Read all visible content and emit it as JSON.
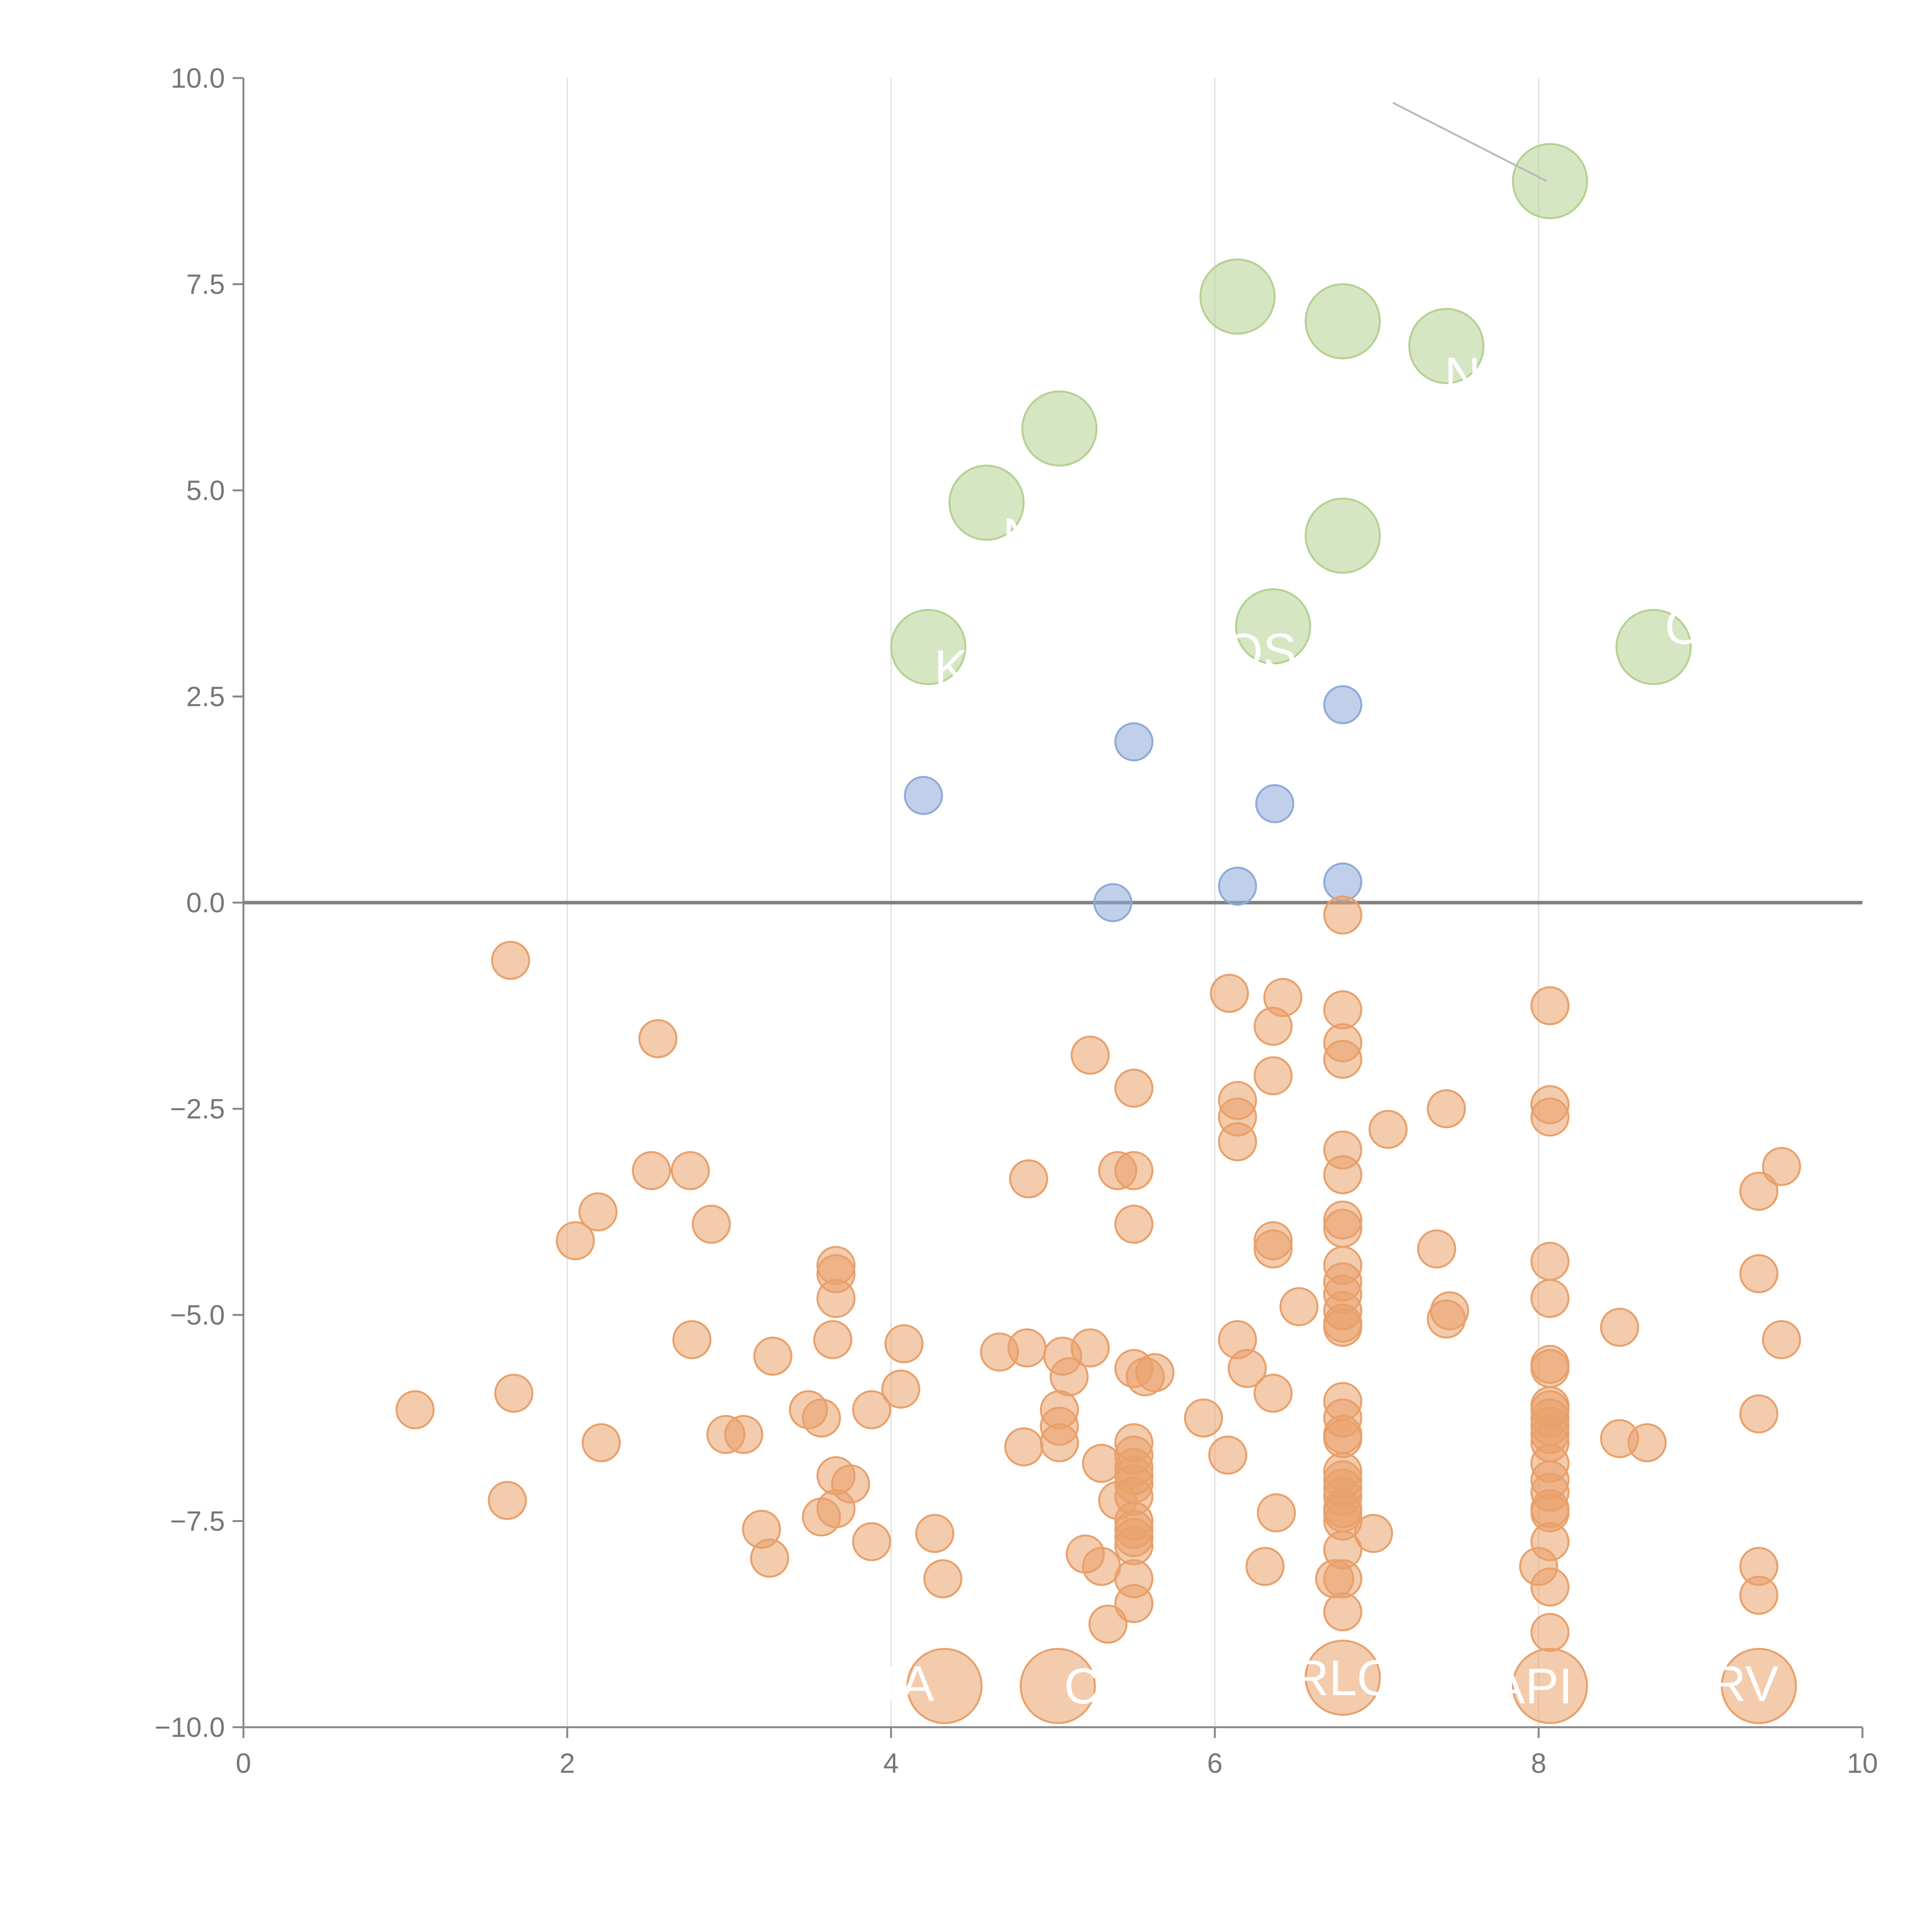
{
  "chart_data": {
    "type": "scatter",
    "title": "",
    "xlabel": "",
    "ylabel": "",
    "xlim": [
      0,
      10
    ],
    "ylim": [
      -10,
      10
    ],
    "x_ticks": [
      "0",
      "2",
      "4",
      "6",
      "8",
      "10"
    ],
    "x_tick_values": [
      0,
      2,
      4,
      6,
      8,
      10
    ],
    "y_ticks": [
      "10.0",
      "7.5",
      "5.0",
      "2.5",
      "0.0",
      "−2.5",
      "−5.0",
      "−7.5",
      "−10.0"
    ],
    "y_tick_values": [
      10,
      7.5,
      5,
      2.5,
      0,
      -2.5,
      -5,
      -7.5,
      -10
    ],
    "vertical_gridlines_at": [
      2,
      4,
      6,
      8
    ],
    "zero_line": true,
    "legend": "none",
    "colors": {
      "green": "#b5d192",
      "blue": "#8eaad8",
      "orange": "#e9a06a",
      "white_label": "#ffffff"
    },
    "series": [
      {
        "color_key": "green",
        "marker_size": "large",
        "points": [
          {
            "x": 8.07,
            "y": 8.75
          },
          {
            "x": 6.14,
            "y": 7.35
          },
          {
            "x": 6.79,
            "y": 7.05
          },
          {
            "x": 7.43,
            "y": 6.75
          },
          {
            "x": 5.04,
            "y": 5.75
          },
          {
            "x": 4.59,
            "y": 4.85
          },
          {
            "x": 6.79,
            "y": 4.45
          },
          {
            "x": 6.36,
            "y": 3.35
          },
          {
            "x": 4.23,
            "y": 3.1
          },
          {
            "x": 8.71,
            "y": 3.1
          }
        ]
      },
      {
        "color_key": "blue",
        "marker_size": "small",
        "points": [
          {
            "x": 6.79,
            "y": 2.4
          },
          {
            "x": 5.5,
            "y": 1.95
          },
          {
            "x": 4.2,
            "y": 1.3
          },
          {
            "x": 6.37,
            "y": 1.2
          },
          {
            "x": 6.79,
            "y": 0.25
          },
          {
            "x": 6.14,
            "y": 0.2
          },
          {
            "x": 5.37,
            "y": 0.0
          }
        ]
      },
      {
        "color_key": "orange",
        "marker_size": "small",
        "points": [
          {
            "x": 6.79,
            "y": -0.15
          },
          {
            "x": 1.65,
            "y": -0.7
          },
          {
            "x": 6.09,
            "y": -1.1
          },
          {
            "x": 6.42,
            "y": -1.15
          },
          {
            "x": 8.07,
            "y": -1.25
          },
          {
            "x": 6.79,
            "y": -1.3
          },
          {
            "x": 6.36,
            "y": -1.5
          },
          {
            "x": 2.56,
            "y": -1.65
          },
          {
            "x": 6.79,
            "y": -1.7
          },
          {
            "x": 5.23,
            "y": -1.85
          },
          {
            "x": 6.79,
            "y": -1.9
          },
          {
            "x": 6.36,
            "y": -2.1
          },
          {
            "x": 5.5,
            "y": -2.25
          },
          {
            "x": 6.14,
            "y": -2.4
          },
          {
            "x": 8.07,
            "y": -2.45
          },
          {
            "x": 7.43,
            "y": -2.5
          },
          {
            "x": 6.14,
            "y": -2.6
          },
          {
            "x": 8.07,
            "y": -2.6
          },
          {
            "x": 7.07,
            "y": -2.75
          },
          {
            "x": 6.14,
            "y": -2.9
          },
          {
            "x": 6.79,
            "y": -3.0
          },
          {
            "x": 2.52,
            "y": -3.25
          },
          {
            "x": 2.76,
            "y": -3.25
          },
          {
            "x": 5.4,
            "y": -3.25
          },
          {
            "x": 5.5,
            "y": -3.25
          },
          {
            "x": 6.79,
            "y": -3.3
          },
          {
            "x": 9.5,
            "y": -3.2
          },
          {
            "x": 4.85,
            "y": -3.35
          },
          {
            "x": 9.36,
            "y": -3.5
          },
          {
            "x": 2.19,
            "y": -3.75
          },
          {
            "x": 6.79,
            "y": -3.85
          },
          {
            "x": 2.89,
            "y": -3.9
          },
          {
            "x": 5.5,
            "y": -3.9
          },
          {
            "x": 6.79,
            "y": -3.95
          },
          {
            "x": 2.05,
            "y": -4.1
          },
          {
            "x": 6.36,
            "y": -4.1
          },
          {
            "x": 7.37,
            "y": -4.2
          },
          {
            "x": 6.36,
            "y": -4.2
          },
          {
            "x": 3.66,
            "y": -4.4
          },
          {
            "x": 6.79,
            "y": -4.4
          },
          {
            "x": 8.07,
            "y": -4.35
          },
          {
            "x": 3.66,
            "y": -4.5
          },
          {
            "x": 9.36,
            "y": -4.5
          },
          {
            "x": 6.79,
            "y": -4.6
          },
          {
            "x": 6.79,
            "y": -4.75
          },
          {
            "x": 3.66,
            "y": -4.8
          },
          {
            "x": 8.07,
            "y": -4.8
          },
          {
            "x": 6.52,
            "y": -4.9
          },
          {
            "x": 7.45,
            "y": -4.95
          },
          {
            "x": 6.79,
            "y": -4.95
          },
          {
            "x": 6.79,
            "y": -5.1
          },
          {
            "x": 7.43,
            "y": -5.05
          },
          {
            "x": 8.5,
            "y": -5.15
          },
          {
            "x": 6.79,
            "y": -5.15
          },
          {
            "x": 2.77,
            "y": -5.3
          },
          {
            "x": 3.64,
            "y": -5.3
          },
          {
            "x": 6.14,
            "y": -5.3
          },
          {
            "x": 9.5,
            "y": -5.3
          },
          {
            "x": 4.08,
            "y": -5.35
          },
          {
            "x": 4.67,
            "y": -5.45
          },
          {
            "x": 4.84,
            "y": -5.4
          },
          {
            "x": 5.23,
            "y": -5.4
          },
          {
            "x": 5.06,
            "y": -5.5
          },
          {
            "x": 3.27,
            "y": -5.5
          },
          {
            "x": 8.07,
            "y": -5.6
          },
          {
            "x": 8.07,
            "y": -5.65
          },
          {
            "x": 5.5,
            "y": -5.65
          },
          {
            "x": 6.2,
            "y": -5.65
          },
          {
            "x": 5.63,
            "y": -5.7
          },
          {
            "x": 5.57,
            "y": -5.75
          },
          {
            "x": 5.1,
            "y": -5.75
          },
          {
            "x": 4.06,
            "y": -5.9
          },
          {
            "x": 6.36,
            "y": -5.95
          },
          {
            "x": 1.67,
            "y": -5.95
          },
          {
            "x": 6.79,
            "y": -6.05
          },
          {
            "x": 8.07,
            "y": -6.1
          },
          {
            "x": 1.06,
            "y": -6.15
          },
          {
            "x": 3.49,
            "y": -6.15
          },
          {
            "x": 3.88,
            "y": -6.15
          },
          {
            "x": 5.04,
            "y": -6.15
          },
          {
            "x": 8.07,
            "y": -6.15
          },
          {
            "x": 9.36,
            "y": -6.2
          },
          {
            "x": 5.93,
            "y": -6.25
          },
          {
            "x": 3.57,
            "y": -6.25
          },
          {
            "x": 6.79,
            "y": -6.25
          },
          {
            "x": 8.07,
            "y": -6.25
          },
          {
            "x": 5.04,
            "y": -6.35
          },
          {
            "x": 8.07,
            "y": -6.35
          },
          {
            "x": 6.79,
            "y": -6.45
          },
          {
            "x": 2.98,
            "y": -6.45
          },
          {
            "x": 3.09,
            "y": -6.45
          },
          {
            "x": 8.07,
            "y": -6.45
          },
          {
            "x": 6.79,
            "y": -6.5
          },
          {
            "x": 5.04,
            "y": -6.55
          },
          {
            "x": 8.5,
            "y": -6.5
          },
          {
            "x": 8.67,
            "y": -6.55
          },
          {
            "x": 2.21,
            "y": -6.55
          },
          {
            "x": 8.07,
            "y": -6.55
          },
          {
            "x": 5.5,
            "y": -6.55
          },
          {
            "x": 4.82,
            "y": -6.6
          },
          {
            "x": 6.08,
            "y": -6.7
          },
          {
            "x": 5.5,
            "y": -6.7
          },
          {
            "x": 5.3,
            "y": -6.8
          },
          {
            "x": 8.07,
            "y": -6.8
          },
          {
            "x": 5.5,
            "y": -6.85
          },
          {
            "x": 6.79,
            "y": -6.9
          },
          {
            "x": 5.5,
            "y": -6.95
          },
          {
            "x": 3.66,
            "y": -6.95
          },
          {
            "x": 6.79,
            "y": -7.0
          },
          {
            "x": 8.07,
            "y": -7.0
          },
          {
            "x": 5.5,
            "y": -7.05
          },
          {
            "x": 3.75,
            "y": -7.05
          },
          {
            "x": 6.79,
            "y": -7.1
          },
          {
            "x": 8.07,
            "y": -7.15
          },
          {
            "x": 5.5,
            "y": -7.2
          },
          {
            "x": 6.79,
            "y": -7.2
          },
          {
            "x": 1.63,
            "y": -7.25
          },
          {
            "x": 5.4,
            "y": -7.25
          },
          {
            "x": 8.07,
            "y": -7.35
          },
          {
            "x": 6.79,
            "y": -7.35
          },
          {
            "x": 3.66,
            "y": -7.35
          },
          {
            "x": 6.38,
            "y": -7.4
          },
          {
            "x": 6.79,
            "y": -7.4
          },
          {
            "x": 8.07,
            "y": -7.4
          },
          {
            "x": 3.57,
            "y": -7.45
          },
          {
            "x": 5.5,
            "y": -7.5
          },
          {
            "x": 6.79,
            "y": -7.5
          },
          {
            "x": 3.2,
            "y": -7.6
          },
          {
            "x": 5.5,
            "y": -7.6
          },
          {
            "x": 6.98,
            "y": -7.65
          },
          {
            "x": 4.27,
            "y": -7.65
          },
          {
            "x": 5.5,
            "y": -7.7
          },
          {
            "x": 3.88,
            "y": -7.75
          },
          {
            "x": 8.07,
            "y": -7.75
          },
          {
            "x": 5.5,
            "y": -7.8
          },
          {
            "x": 6.79,
            "y": -7.85
          },
          {
            "x": 5.2,
            "y": -7.9
          },
          {
            "x": 3.25,
            "y": -7.95
          },
          {
            "x": 5.3,
            "y": -8.05
          },
          {
            "x": 6.31,
            "y": -8.05
          },
          {
            "x": 8.0,
            "y": -8.05
          },
          {
            "x": 9.36,
            "y": -8.05
          },
          {
            "x": 6.74,
            "y": -8.2
          },
          {
            "x": 5.5,
            "y": -8.2
          },
          {
            "x": 4.32,
            "y": -8.2
          },
          {
            "x": 6.79,
            "y": -8.2
          },
          {
            "x": 8.07,
            "y": -8.3
          },
          {
            "x": 9.36,
            "y": -8.4
          },
          {
            "x": 5.5,
            "y": -8.5
          },
          {
            "x": 6.79,
            "y": -8.6
          },
          {
            "x": 5.34,
            "y": -8.75
          },
          {
            "x": 8.07,
            "y": -8.85
          }
        ]
      },
      {
        "color_key": "orange",
        "marker_size": "large",
        "points": [
          {
            "x": 4.33,
            "y": -9.5
          },
          {
            "x": 5.03,
            "y": -9.5
          },
          {
            "x": 6.79,
            "y": -9.4
          },
          {
            "x": 8.07,
            "y": -9.5
          },
          {
            "x": 9.36,
            "y": -9.5
          }
        ]
      }
    ],
    "point_labels": [
      {
        "text": "TA",
        "x": 4.08,
        "y": -9.47
      },
      {
        "text": "C",
        "x": 5.18,
        "y": -9.5
      },
      {
        "text": "RLO",
        "x": 6.8,
        "y": -9.4
      },
      {
        "text": "API",
        "x": 7.96,
        "y": -9.5
      },
      {
        "text": "RV",
        "x": 9.27,
        "y": -9.47
      },
      {
        "text": "OS",
        "x": 6.28,
        "y": 3.05
      },
      {
        "text": "K",
        "x": 4.37,
        "y": 2.85
      },
      {
        "text": "N",
        "x": 4.8,
        "y": 4.45
      },
      {
        "text": "N",
        "x": 7.53,
        "y": 6.4
      },
      {
        "text": "O",
        "x": 8.9,
        "y": 3.35
      }
    ],
    "leader_lines": [
      {
        "from": [
          7.1,
          9.7
        ],
        "to": [
          8.05,
          8.75
        ]
      }
    ]
  }
}
